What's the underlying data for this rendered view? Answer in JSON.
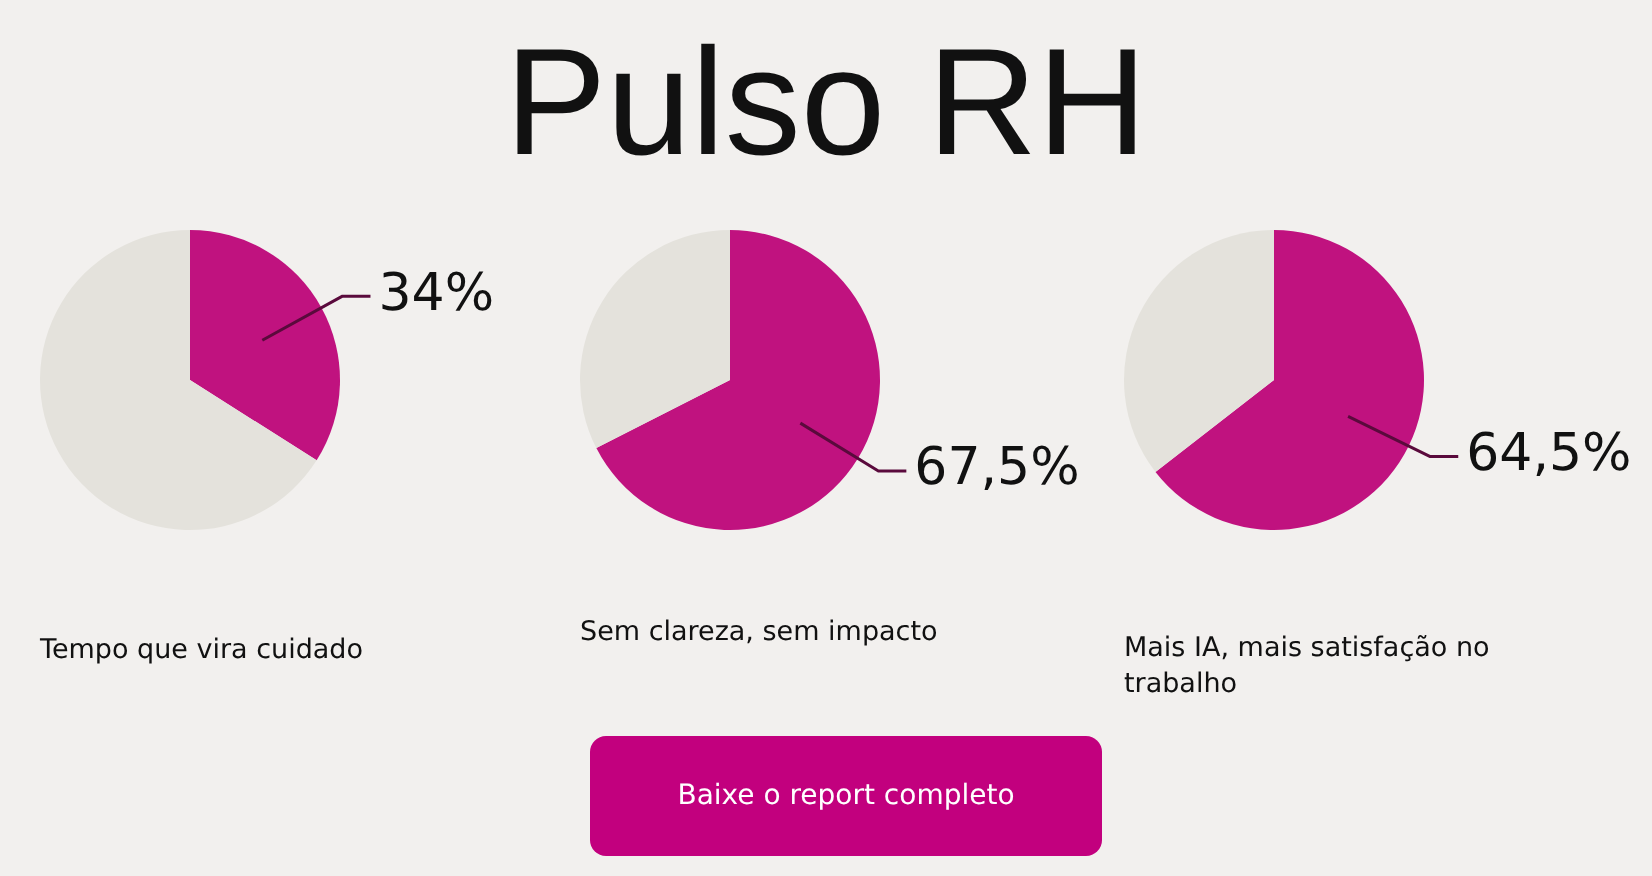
{
  "chart_data": [
    {
      "type": "other",
      "title": "Pulso RH",
      "annotations": [
        "Baixe o report completo"
      ]
    },
    {
      "type": "pie",
      "title": "Tempo que vira cuidado",
      "categories": [
        null,
        null
      ],
      "values": [
        34,
        66
      ],
      "colors": [
        "#c0127f",
        "#e4e2dc"
      ],
      "value_labels": [
        "34%",
        null
      ]
    },
    {
      "type": "pie",
      "title": "Sem clareza, sem impacto",
      "categories": [
        null,
        null
      ],
      "values": [
        67.5,
        32.5
      ],
      "colors": [
        "#c0127f",
        "#e4e2dc"
      ],
      "value_labels": [
        "67,5%",
        null
      ]
    },
    {
      "type": "pie",
      "title": "Mais IA, mais satisfação no trabalho",
      "categories": [
        null,
        null
      ],
      "values": [
        64.5,
        35.5
      ],
      "colors": [
        "#c0127f",
        "#e4e2dc"
      ],
      "value_labels": [
        "64,5%",
        null
      ]
    }
  ]
}
